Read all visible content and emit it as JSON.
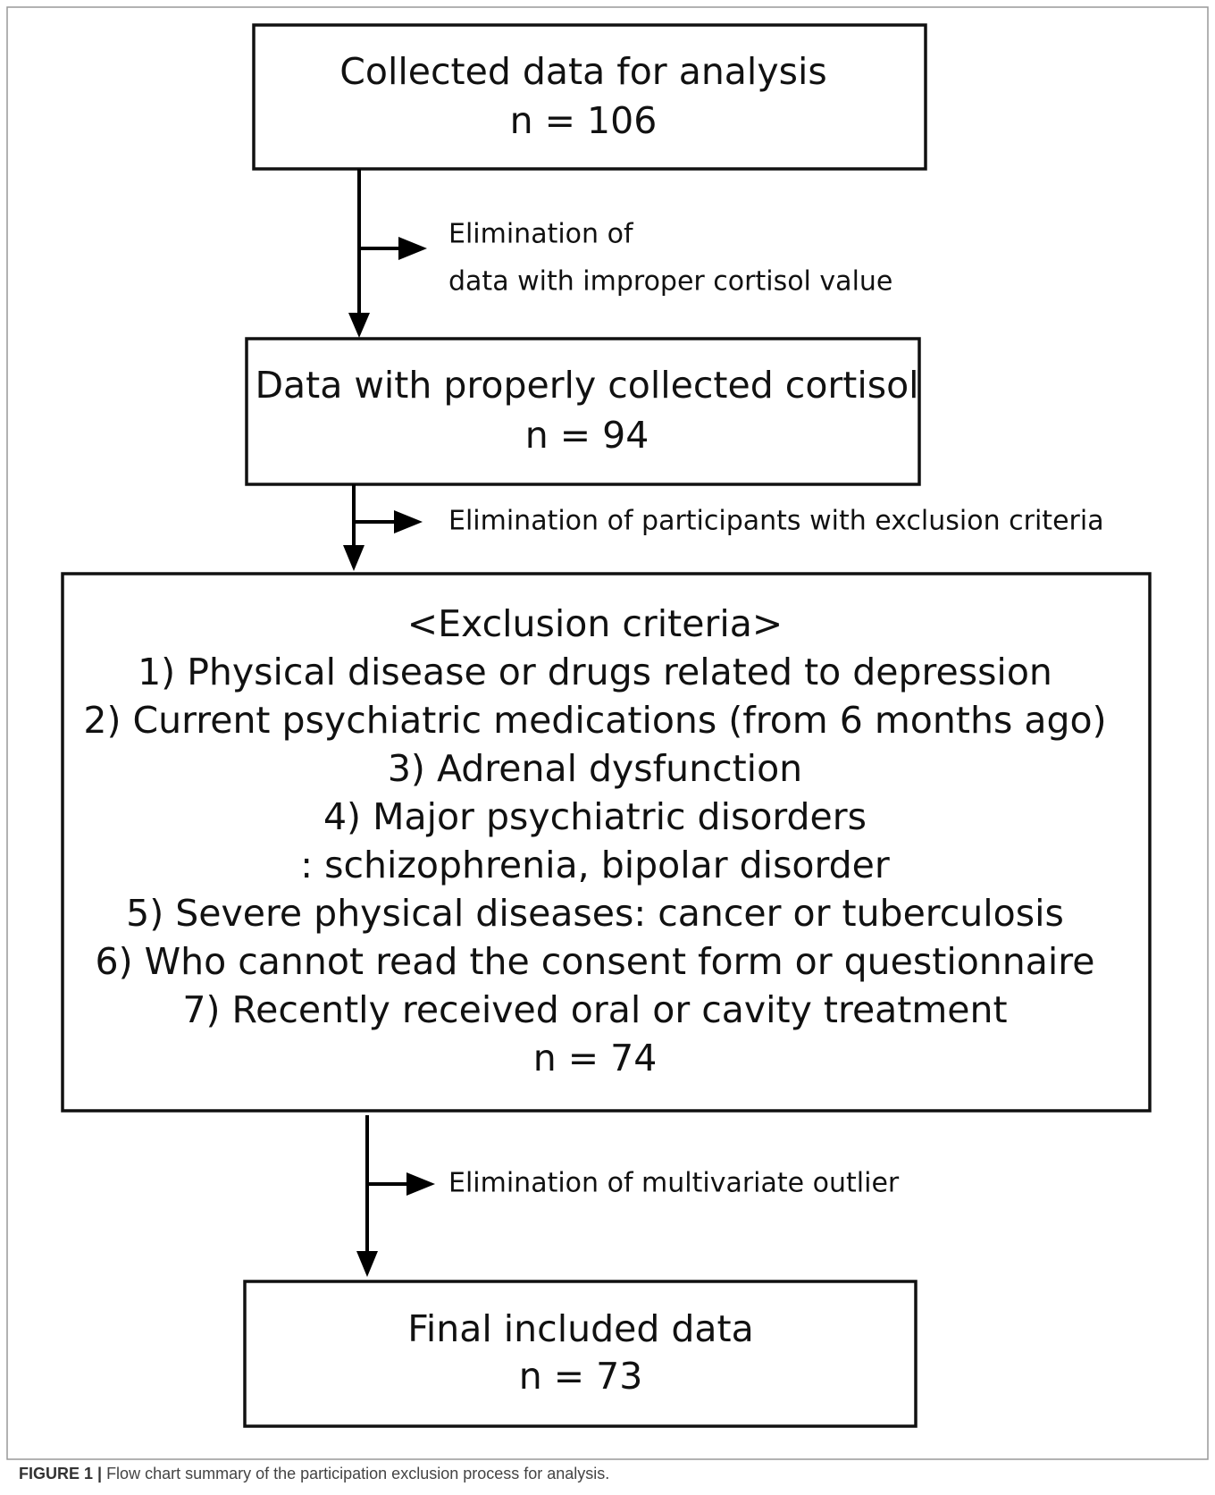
{
  "nodes": [
    {
      "lines": [
        "Collected data for analysis",
        "n = 106"
      ]
    },
    {
      "lines": [
        "Data with properly collected cortisol",
        "n = 94"
      ]
    },
    {
      "lines": [
        "<Exclusion criteria>",
        "1) Physical disease or drugs related to depression",
        "2) Current psychiatric medications (from 6 months ago)",
        "3) Adrenal dysfunction",
        "4) Major psychiatric disorders",
        ": schizophrenia, bipolar disorder",
        "5) Severe physical diseases: cancer or tuberculosis",
        "6) Who cannot read the consent form or questionnaire",
        "7) Recently received oral or cavity treatment",
        "n = 74"
      ]
    },
    {
      "lines": [
        "Final included data",
        "n = 73"
      ]
    }
  ],
  "edges": [
    {
      "label": [
        "Elimination of",
        "data with improper cortisol value"
      ]
    },
    {
      "label": [
        "Elimination of participants with exclusion criteria"
      ]
    },
    {
      "label": [
        "Elimination of multivariate outlier"
      ]
    }
  ],
  "caption": {
    "label": "FIGURE 1 |",
    "text": " Flow chart summary of the participation exclusion process for analysis."
  }
}
